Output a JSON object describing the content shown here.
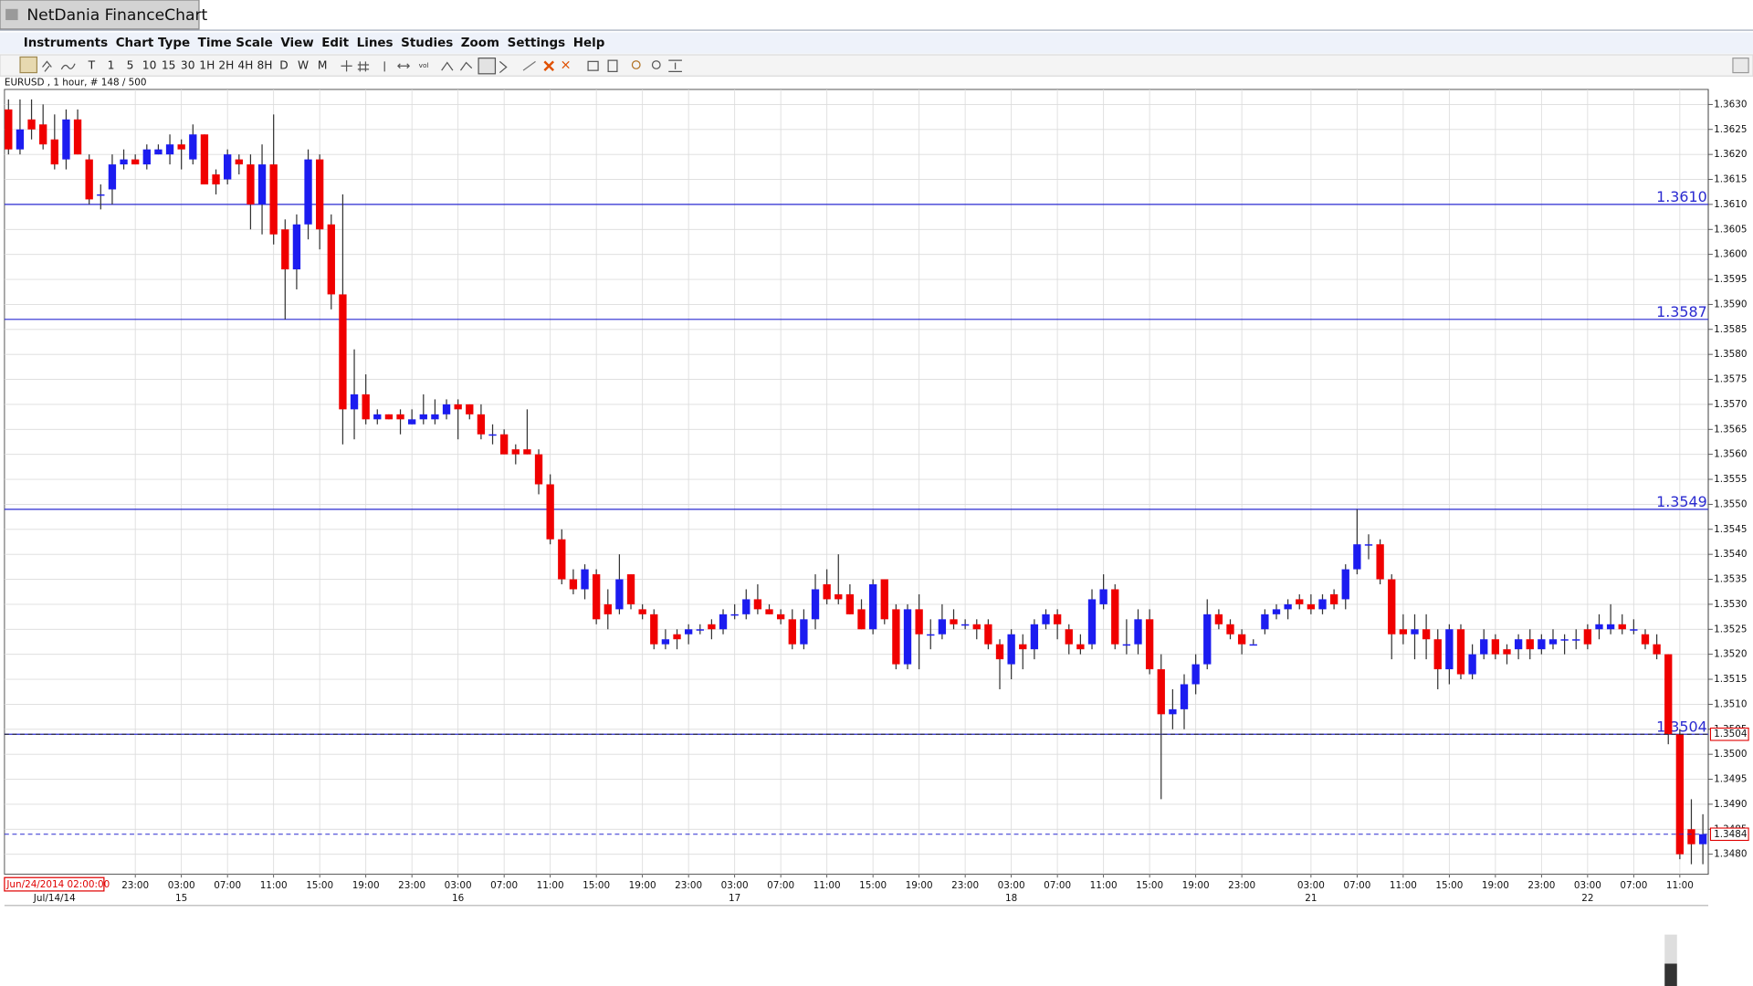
{
  "window": {
    "title": "NetDania FinanceChart",
    "menu": [
      "Instruments",
      "Chart Type",
      "Time Scale",
      "View",
      "Edit",
      "Lines",
      "Studies",
      "Zoom",
      "Settings",
      "Help"
    ],
    "timescales": [
      "T",
      "1",
      "5",
      "10",
      "15",
      "30",
      "1H",
      "2H",
      "4H",
      "8H",
      "D",
      "W",
      "M"
    ],
    "toolbar_icon_label": "vol",
    "info": "EURUSD , 1 hour, # 148 / 500",
    "cursor_time": "Jun/24/2014 02:00:00"
  },
  "chart_data": {
    "type": "candlestick",
    "up_color": "#1c1cf0",
    "down_color": "#f00000",
    "grid": true,
    "categories": [
      null,
      null,
      null,
      null,
      null,
      null,
      null,
      null,
      null,
      null,
      null,
      "23:00",
      null,
      null,
      null,
      "03:00",
      null,
      null,
      null,
      "07:00",
      null,
      null,
      null,
      "11:00",
      null,
      null,
      null,
      "15:00",
      null,
      null,
      null,
      "19:00",
      null,
      null,
      null,
      "23:00",
      null,
      null,
      null,
      "03:00",
      null,
      null,
      null,
      "07:00",
      null,
      null,
      null,
      "11:00",
      null,
      null,
      null,
      "15:00",
      null,
      null,
      null,
      "19:00",
      null,
      null,
      null,
      "23:00",
      null,
      null,
      null,
      "03:00",
      null,
      null,
      null,
      "07:00",
      null,
      null,
      null,
      "11:00",
      null,
      null,
      null,
      "15:00",
      null,
      null,
      null,
      "19:00",
      null,
      null,
      null,
      "23:00",
      null,
      null,
      null,
      "03:00",
      null,
      null,
      null,
      "07:00",
      null,
      null,
      null,
      "11:00",
      null,
      null,
      null,
      "15:00",
      null,
      null,
      null,
      "19:00",
      null,
      null,
      null,
      "23:00",
      null,
      null,
      null,
      null,
      null,
      "03:00",
      null,
      null,
      null,
      "07:00",
      null,
      null,
      null,
      "11:00",
      null,
      null,
      null,
      "15:00",
      null,
      null,
      null,
      "19:00",
      null,
      null,
      null,
      "23:00",
      null,
      null,
      null,
      "03:00",
      null,
      null,
      null,
      "07:00",
      null,
      null,
      null,
      "11:00",
      null,
      null
    ],
    "dates": [
      null,
      null,
      null,
      null,
      "Jul/14/14",
      null,
      null,
      null,
      null,
      null,
      null,
      null,
      null,
      null,
      null,
      "15",
      null,
      null,
      null,
      null,
      null,
      null,
      null,
      null,
      null,
      null,
      null,
      null,
      null,
      null,
      null,
      null,
      null,
      null,
      null,
      null,
      null,
      null,
      null,
      "16",
      null,
      null,
      null,
      null,
      null,
      null,
      null,
      null,
      null,
      null,
      null,
      null,
      null,
      null,
      null,
      null,
      null,
      null,
      null,
      null,
      null,
      null,
      null,
      "17",
      null,
      null,
      null,
      null,
      null,
      null,
      null,
      null,
      null,
      null,
      null,
      null,
      null,
      null,
      null,
      null,
      null,
      null,
      null,
      null,
      null,
      null,
      null,
      "18",
      null,
      null,
      null,
      null,
      null,
      null,
      null,
      null,
      null,
      null,
      null,
      null,
      null,
      null,
      null,
      null,
      null,
      null,
      null,
      null,
      null,
      null,
      null,
      null,
      null,
      "21",
      null,
      null,
      null,
      null,
      null,
      null,
      null,
      null,
      null,
      null,
      null,
      null,
      null,
      null,
      null,
      null,
      null,
      null,
      null,
      null,
      null,
      null,
      null,
      "22",
      null,
      null,
      null,
      null,
      null,
      null,
      null,
      null,
      null,
      null
    ],
    "open": [
      1.3629,
      1.3621,
      1.3627,
      1.3626,
      1.3623,
      1.3619,
      1.3627,
      1.3619,
      1.3612,
      1.3613,
      1.3618,
      1.3619,
      1.3618,
      1.362,
      1.362,
      1.3622,
      1.3619,
      1.3624,
      1.3616,
      1.3615,
      1.3619,
      1.3618,
      1.361,
      1.3618,
      1.3605,
      1.3597,
      1.3606,
      1.3619,
      1.3606,
      1.3592,
      1.3569,
      1.3572,
      1.3567,
      1.3568,
      1.3568,
      1.3566,
      1.3567,
      1.3567,
      1.3568,
      1.357,
      1.357,
      1.3568,
      1.3564,
      1.3564,
      1.3561,
      1.3561,
      1.356,
      1.3554,
      1.3543,
      1.3535,
      1.3533,
      1.3536,
      1.353,
      1.3529,
      1.3536,
      1.3529,
      1.3528,
      1.3522,
      1.3524,
      1.3524,
      1.3525,
      1.3526,
      1.3525,
      1.3528,
      1.3528,
      1.3531,
      1.3529,
      1.3528,
      1.3527,
      1.3522,
      1.3527,
      1.3534,
      1.3532,
      1.3532,
      1.3529,
      1.3525,
      1.3535,
      1.3529,
      1.3518,
      1.3529,
      1.3524,
      1.3524,
      1.3527,
      1.3526,
      1.3526,
      1.3526,
      1.3522,
      1.3518,
      1.3522,
      1.3521,
      1.3526,
      1.3528,
      1.3525,
      1.3522,
      1.3522,
      1.353,
      1.3533,
      1.3522,
      1.3522,
      1.3527,
      1.3517,
      1.3508,
      1.3509,
      1.3514,
      1.3518,
      1.3528,
      1.3526,
      1.3524,
      1.3522,
      1.3525,
      1.3528,
      1.3529,
      1.3531,
      1.353,
      1.3529,
      1.3532,
      1.3531,
      1.3537,
      1.3542,
      1.3542,
      1.3535,
      1.3525,
      1.3524,
      1.3525,
      1.3523,
      1.3517,
      1.3525,
      1.3516,
      1.352,
      1.3523,
      1.3521,
      1.3521,
      1.3523,
      1.3521,
      1.3522,
      1.3523,
      1.3523,
      1.3525,
      1.3525,
      1.3525,
      1.3526,
      1.3525,
      1.3524,
      1.3522,
      1.352,
      1.3504,
      1.3485,
      1.3482
    ],
    "high": [
      1.3631,
      1.3631,
      1.3631,
      1.363,
      1.3628,
      1.3629,
      1.3629,
      1.362,
      1.3614,
      1.362,
      1.3621,
      1.362,
      1.3622,
      1.3622,
      1.3624,
      1.3623,
      1.3626,
      1.3624,
      1.3617,
      1.3621,
      1.362,
      1.362,
      1.3622,
      1.3628,
      1.3607,
      1.3608,
      1.3621,
      1.362,
      1.3608,
      1.3612,
      1.3581,
      1.3576,
      1.3569,
      1.3568,
      1.3569,
      1.3569,
      1.3572,
      1.3571,
      1.3571,
      1.3571,
      1.357,
      1.357,
      1.3566,
      1.3565,
      1.3562,
      1.3569,
      1.3561,
      1.3556,
      1.3545,
      1.3537,
      1.3538,
      1.3537,
      1.3533,
      1.354,
      1.3536,
      1.353,
      1.3529,
      1.3525,
      1.3525,
      1.3526,
      1.3526,
      1.3527,
      1.3529,
      1.353,
      1.3533,
      1.3534,
      1.353,
      1.3529,
      1.3529,
      1.3529,
      1.3536,
      1.3537,
      1.354,
      1.3534,
      1.3531,
      1.3535,
      1.3535,
      1.353,
      1.353,
      1.3532,
      1.3527,
      1.353,
      1.3529,
      1.3527,
      1.3527,
      1.3527,
      1.3523,
      1.3525,
      1.3524,
      1.3527,
      1.3529,
      1.3529,
      1.3526,
      1.3524,
      1.3533,
      1.3536,
      1.3534,
      1.3527,
      1.3529,
      1.3529,
      1.352,
      1.3513,
      1.3516,
      1.352,
      1.3531,
      1.3529,
      1.3527,
      1.3525,
      1.3523,
      1.3529,
      1.353,
      1.3531,
      1.3532,
      1.3532,
      1.3532,
      1.3533,
      1.3538,
      1.3549,
      1.3544,
      1.3543,
      1.3536,
      1.3528,
      1.3528,
      1.3528,
      1.3525,
      1.3526,
      1.3526,
      1.3522,
      1.3525,
      1.3524,
      1.3522,
      1.3524,
      1.3525,
      1.3524,
      1.3525,
      1.3524,
      1.3525,
      1.3526,
      1.3528,
      1.353,
      1.3528,
      1.3527,
      1.3525,
      1.3524,
      1.352,
      1.3505,
      1.3491,
      1.3488
    ],
    "low": [
      1.362,
      1.362,
      1.3623,
      1.3621,
      1.3617,
      1.3617,
      1.362,
      1.361,
      1.3609,
      1.361,
      1.3617,
      1.3618,
      1.3617,
      1.362,
      1.3618,
      1.3617,
      1.3618,
      1.3614,
      1.3612,
      1.3614,
      1.3616,
      1.3605,
      1.3604,
      1.3602,
      1.3587,
      1.3593,
      1.3603,
      1.3601,
      1.3589,
      1.3562,
      1.3563,
      1.3566,
      1.3566,
      1.3567,
      1.3564,
      1.3566,
      1.3566,
      1.3566,
      1.3567,
      1.3563,
      1.3567,
      1.3563,
      1.3562,
      1.356,
      1.3558,
      1.356,
      1.3552,
      1.3542,
      1.3534,
      1.3532,
      1.3531,
      1.3526,
      1.3525,
      1.3528,
      1.3529,
      1.3527,
      1.3521,
      1.3521,
      1.3521,
      1.3522,
      1.3524,
      1.3523,
      1.3524,
      1.3527,
      1.3527,
      1.3528,
      1.3528,
      1.3526,
      1.3521,
      1.3521,
      1.3525,
      1.353,
      1.353,
      1.3528,
      1.3525,
      1.3524,
      1.3526,
      1.3517,
      1.3517,
      1.3517,
      1.3521,
      1.3523,
      1.3525,
      1.3525,
      1.3523,
      1.3521,
      1.3513,
      1.3515,
      1.3517,
      1.3519,
      1.3525,
      1.3523,
      1.352,
      1.352,
      1.3521,
      1.3529,
      1.3521,
      1.352,
      1.352,
      1.3516,
      1.3491,
      1.3505,
      1.3505,
      1.3512,
      1.3517,
      1.3525,
      1.3523,
      1.352,
      1.3522,
      1.3524,
      1.3527,
      1.3527,
      1.3529,
      1.3528,
      1.3528,
      1.3529,
      1.3529,
      1.3536,
      1.3539,
      1.3534,
      1.3519,
      1.3522,
      1.3519,
      1.3519,
      1.3513,
      1.3514,
      1.3515,
      1.3515,
      1.3519,
      1.3519,
      1.3518,
      1.3519,
      1.3519,
      1.352,
      1.3521,
      1.352,
      1.3521,
      1.3521,
      1.3523,
      1.3524,
      1.3524,
      1.3524,
      1.3521,
      1.3519,
      1.3502,
      1.3479,
      1.3478,
      1.3478
    ],
    "close": [
      1.3621,
      1.3625,
      1.3625,
      1.3622,
      1.3618,
      1.3627,
      1.362,
      1.3611,
      1.3612,
      1.3618,
      1.3619,
      1.3618,
      1.3621,
      1.3621,
      1.3622,
      1.3621,
      1.3624,
      1.3614,
      1.3614,
      1.362,
      1.3618,
      1.361,
      1.3618,
      1.3604,
      1.3597,
      1.3606,
      1.3619,
      1.3605,
      1.3592,
      1.3569,
      1.3572,
      1.3567,
      1.3568,
      1.3567,
      1.3567,
      1.3567,
      1.3568,
      1.3568,
      1.357,
      1.3569,
      1.3568,
      1.3564,
      1.3564,
      1.356,
      1.356,
      1.356,
      1.3554,
      1.3543,
      1.3535,
      1.3533,
      1.3537,
      1.3527,
      1.3528,
      1.3535,
      1.353,
      1.3528,
      1.3522,
      1.3523,
      1.3523,
      1.3525,
      1.3525,
      1.3525,
      1.3528,
      1.3528,
      1.3531,
      1.3529,
      1.3528,
      1.3527,
      1.3522,
      1.3527,
      1.3533,
      1.3531,
      1.3531,
      1.3528,
      1.3525,
      1.3534,
      1.3527,
      1.3518,
      1.3529,
      1.3524,
      1.3524,
      1.3527,
      1.3526,
      1.3526,
      1.3525,
      1.3522,
      1.3519,
      1.3524,
      1.3521,
      1.3526,
      1.3528,
      1.3526,
      1.3522,
      1.3521,
      1.3531,
      1.3533,
      1.3522,
      1.3522,
      1.3527,
      1.3517,
      1.3508,
      1.3509,
      1.3514,
      1.3518,
      1.3528,
      1.3526,
      1.3524,
      1.3522,
      1.3522,
      1.3528,
      1.3529,
      1.353,
      1.353,
      1.3529,
      1.3531,
      1.353,
      1.3537,
      1.3542,
      1.3542,
      1.3535,
      1.3524,
      1.3524,
      1.3525,
      1.3523,
      1.3517,
      1.3525,
      1.3516,
      1.352,
      1.3523,
      1.352,
      1.352,
      1.3523,
      1.3521,
      1.3523,
      1.3523,
      1.3523,
      1.3523,
      1.3522,
      1.3526,
      1.3526,
      1.3525,
      1.3525,
      1.3522,
      1.352,
      1.3504,
      1.348,
      1.3482,
      1.3484
    ],
    "ylim": [
      1.3476,
      1.3633
    ],
    "yticks": [
      {
        "value": 1.348,
        "label": "1.3480"
      },
      1.3485,
      {
        "value": 1.349,
        "label": "1.3490"
      },
      1.3495,
      {
        "value": 1.35,
        "label": "1.3500"
      },
      1.3505,
      {
        "value": 1.351,
        "label": "1.3510"
      },
      1.3515,
      {
        "value": 1.352,
        "label": "1.3520"
      },
      1.3525,
      {
        "value": 1.353,
        "label": "1.3530"
      },
      1.3535,
      {
        "value": 1.354,
        "label": "1.3540"
      },
      1.3545,
      {
        "value": 1.355,
        "label": "1.3550"
      },
      1.3555,
      {
        "value": 1.356,
        "label": "1.3560"
      },
      1.3565,
      {
        "value": 1.357,
        "label": "1.3570"
      },
      1.3575,
      {
        "value": 1.358,
        "label": "1.3580"
      },
      1.3585,
      {
        "value": 1.359,
        "label": "1.3590"
      },
      1.3595,
      {
        "value": 1.36,
        "label": "1.3600"
      },
      1.3605,
      {
        "value": 1.361,
        "label": "1.3610"
      },
      1.3615,
      {
        "value": 1.362,
        "label": "1.3620"
      },
      1.3625,
      {
        "value": 1.363,
        "label": "1.3630"
      }
    ],
    "levels": [
      {
        "value": 1.361,
        "label": "1.3610"
      },
      1.3587,
      1.3549,
      1.3504
    ],
    "level_color": "#2a2ad0",
    "markers": [
      {
        "value": 1.3504,
        "color": "#222222"
      },
      {
        "value": 1.3484,
        "color": "#2a2ad0"
      }
    ],
    "marker_box_color": "#e00000"
  }
}
